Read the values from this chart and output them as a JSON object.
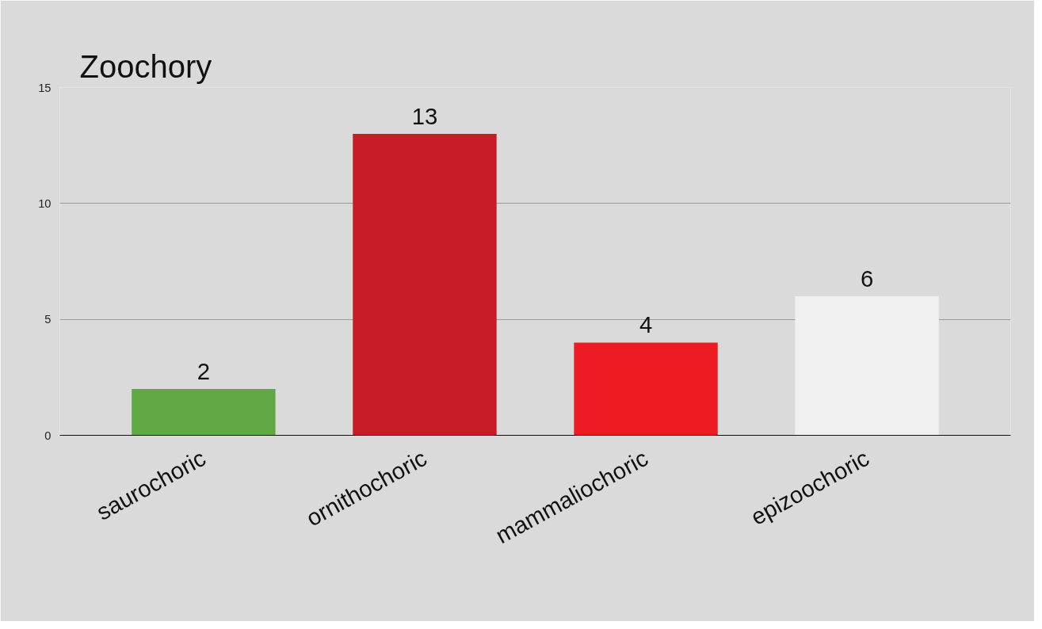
{
  "chart_data": {
    "type": "bar",
    "title": "Zoochory",
    "categories": [
      "saurochoric",
      "ornithochoric",
      "mammaliochoric",
      "epizoochoric"
    ],
    "values": [
      2,
      13,
      4,
      6
    ],
    "colors": [
      "#5fa843",
      "#c71c25",
      "#ed1c24",
      "#eff0ef"
    ],
    "ylim": [
      0,
      15
    ],
    "yticks": [
      0,
      5,
      10,
      15
    ],
    "grid": "y",
    "data_labels": true
  }
}
